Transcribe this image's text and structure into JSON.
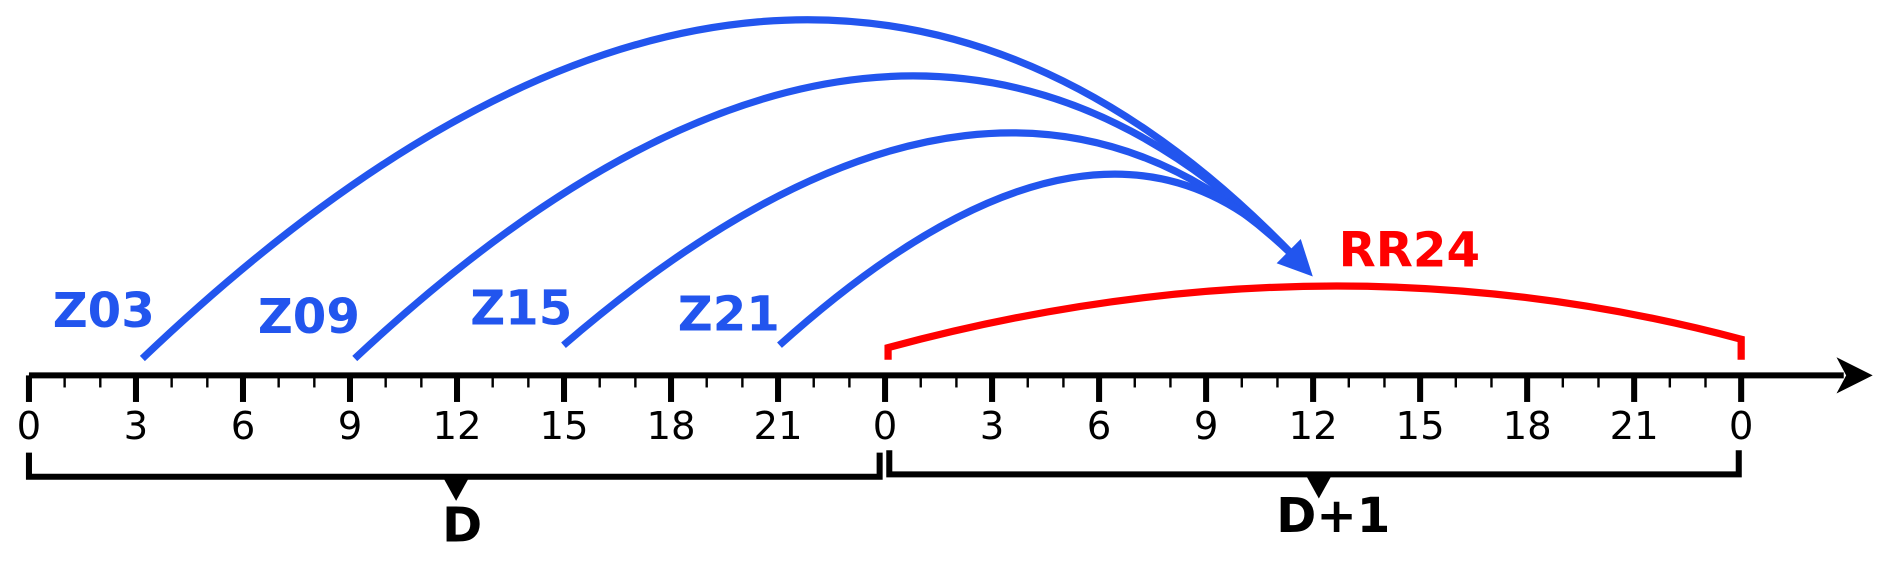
{
  "axis": {
    "labels": [
      0,
      3,
      6,
      9,
      12,
      15,
      18,
      21,
      0,
      3,
      6,
      9,
      12,
      15,
      18,
      21,
      0
    ]
  },
  "arcs": [
    {
      "label": "Z03"
    },
    {
      "label": "Z09"
    },
    {
      "label": "Z15"
    },
    {
      "label": "Z21"
    }
  ],
  "window": {
    "label": "RR24"
  },
  "days": [
    {
      "label": "D"
    },
    {
      "label": "D+1"
    }
  ]
}
